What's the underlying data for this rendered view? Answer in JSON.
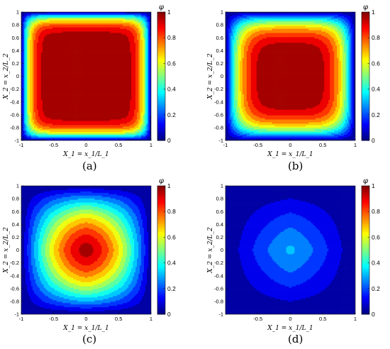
{
  "chart_data": [
    {
      "type": "heatmap",
      "panel": "(a)",
      "field": {
        "form": "separable",
        "exponent": 7.0,
        "scale": 1.0
      },
      "x": {
        "label": "X_1 = x_1/L_1",
        "range": [
          -1,
          1
        ],
        "ticks": [
          "-1",
          "-0.5",
          "0",
          "0.5",
          "1"
        ]
      },
      "y": {
        "label": "X_2 = x_2/L_2",
        "range": [
          -1,
          1
        ],
        "ticks": [
          "1",
          "0.8",
          "0.6",
          "0.4",
          "0.2",
          "0",
          "-0.2",
          "-0.4",
          "-0.6",
          "-0.8",
          "-1"
        ]
      },
      "colorbar": {
        "label": "φ",
        "range": [
          0,
          1
        ],
        "ticks": [
          "1",
          "0.8",
          "0.6",
          "0.4",
          "0.2",
          "0"
        ]
      }
    },
    {
      "type": "heatmap",
      "panel": "(b)",
      "field": {
        "form": "separable",
        "exponent": 4.0,
        "scale": 1.0
      },
      "x": {
        "label": "X_1 = x_1/L_1",
        "range": [
          -1,
          1
        ],
        "ticks": [
          "-1",
          "-0.5",
          "0",
          "0.5",
          "1"
        ]
      },
      "y": {
        "label": "X_2 = x_2/L_2",
        "range": [
          -1,
          1
        ],
        "ticks": [
          "1",
          "0.8",
          "0.6",
          "0.4",
          "0.2",
          "0",
          "-0.2",
          "-0.4",
          "-0.6",
          "-0.8",
          "-1"
        ]
      },
      "colorbar": {
        "label": "φ",
        "range": [
          0,
          1
        ],
        "ticks": [
          "1",
          "0.8",
          "0.6",
          "0.4",
          "0.2",
          "0"
        ]
      }
    },
    {
      "type": "heatmap",
      "panel": "(c)",
      "field": {
        "form": "separable",
        "exponent": 1.6,
        "scale": 0.96
      },
      "x": {
        "label": "X_1 = x_1/L_1",
        "range": [
          -1,
          1
        ],
        "ticks": [
          "-1",
          "-0.5",
          "0",
          "0.5",
          "1"
        ]
      },
      "y": {
        "label": "X_2 = x_2/L_2",
        "range": [
          -1,
          1
        ],
        "ticks": [
          "1",
          "0.8",
          "0.6",
          "0.4",
          "0.2",
          "0",
          "-0.2",
          "-0.4",
          "-0.6",
          "-0.8",
          "-1"
        ]
      },
      "colorbar": {
        "label": "φ",
        "range": [
          0,
          1
        ],
        "ticks": [
          "1",
          "0.8",
          "0.6",
          "0.4",
          "0.2",
          "0"
        ]
      }
    },
    {
      "type": "heatmap",
      "panel": "(d)",
      "field": {
        "form": "separable",
        "exponent": 1.2,
        "scale": 0.3
      },
      "x": {
        "label": "X_1 = x_1/L_1",
        "range": [
          -1,
          1
        ],
        "ticks": [
          "-0.5",
          "0",
          "0.5",
          "1"
        ]
      },
      "y": {
        "label": "X_2 = x_2/L_2",
        "range": [
          -1,
          1
        ],
        "ticks": [
          "1",
          "0.8",
          "0.6",
          "0.4",
          "0.2",
          "0",
          "-0.2",
          "-0.4",
          "-0.6",
          "-0.8",
          "-1"
        ]
      },
      "colorbar": {
        "label": "φ",
        "range": [
          0,
          1
        ],
        "ticks": [
          "1",
          "0.8",
          "0.6",
          "0.4",
          "0.2",
          "0"
        ]
      }
    }
  ],
  "colormap": "jet",
  "contour_levels": 14
}
